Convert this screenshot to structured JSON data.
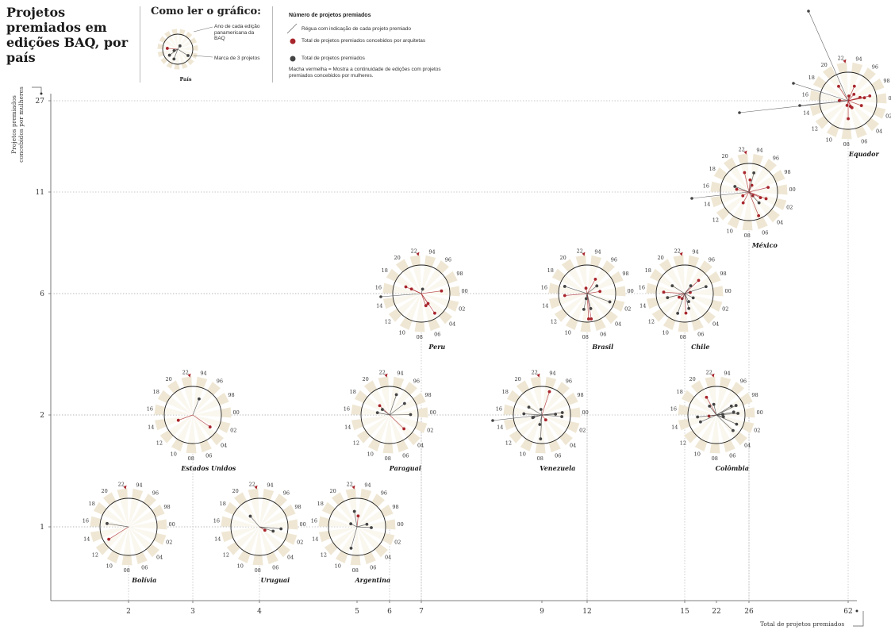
{
  "title": "Projetos premiados em edições BAQ, por país",
  "how_to": {
    "title": "Como ler o gráfico:",
    "note_year": "Ano de cada edição panamericana da BAQ",
    "note_mark": "Marca de 3 projetos",
    "country_label": "País"
  },
  "legend": {
    "title": "Número de projetos premiados",
    "items": [
      {
        "symbol": "ruler",
        "text": "Régua com indicação de cada projeto premiado"
      },
      {
        "symbol": "red-dot",
        "text": "Total de projetos premiados concebidos por arquitetas"
      },
      {
        "symbol": "black-dot",
        "text": "Total de projetos premiados"
      }
    ],
    "note": "Macha vermelha = Mostra a continuidade de edições com projetos premiados concebidos por mulheres."
  },
  "colors": {
    "wedge": "#efe7d4",
    "red": "#a8252c",
    "black": "#444444",
    "grid": "#b8b8b8"
  },
  "edition_labels": [
    "94",
    "96",
    "98",
    "00",
    "02",
    "04",
    "06",
    "08",
    "10",
    "12",
    "14",
    "16",
    "18",
    "20",
    "22"
  ],
  "chart_data": {
    "type": "scatter",
    "xlabel": "Total de projetos premiados",
    "ylabel": "Projetos premiados concebidos por mulheres",
    "x_ticks": [
      2,
      3,
      4,
      5,
      6,
      7,
      9,
      12,
      15,
      22,
      26,
      62
    ],
    "y_ticks": [
      1,
      2,
      6,
      11,
      27
    ],
    "scale": "ordinal",
    "points": [
      {
        "country": "Bolívia",
        "total": 2,
        "women": 1
      },
      {
        "country": "Uruguai",
        "total": 4,
        "women": 1
      },
      {
        "country": "Argentina",
        "total": 6,
        "women": 1
      },
      {
        "country": "Estados Unidos",
        "total": 3,
        "women": 2
      },
      {
        "country": "Paraguai",
        "total": 7,
        "women": 2
      },
      {
        "country": "Venezuela",
        "total": 12,
        "women": 2
      },
      {
        "country": "Colômbia",
        "total": 26,
        "women": 2
      },
      {
        "country": "Peru",
        "total": 7,
        "women": 6
      },
      {
        "country": "Brasil",
        "total": 12,
        "women": 6
      },
      {
        "country": "Chile",
        "total": 15,
        "women": 6
      },
      {
        "country": "México",
        "total": 26,
        "women": 11
      },
      {
        "country": "Equador",
        "total": 62,
        "women": 27
      }
    ]
  }
}
